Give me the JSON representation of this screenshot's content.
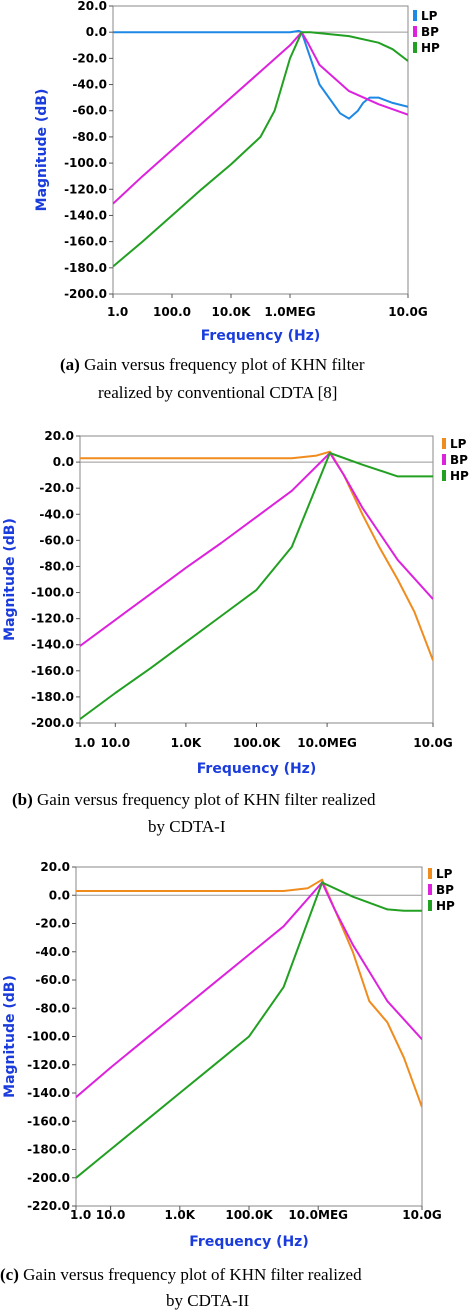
{
  "chart_data": [
    {
      "type": "line",
      "xscale": "log",
      "x_tick_labels": [
        "1.0",
        "100.0",
        "10.0K",
        "1.0MEG",
        "10.0G"
      ],
      "x_tick_values": [
        1,
        100,
        10000,
        1000000,
        10000000000
      ],
      "xlim": [
        1,
        10000000000
      ],
      "ylim": [
        -200,
        20
      ],
      "y_ticks": [
        20,
        0,
        -20,
        -40,
        -60,
        -80,
        -100,
        -120,
        -140,
        -160,
        -180,
        -200
      ],
      "y_tick_labels": [
        "20.0",
        "0.0",
        "-20.0",
        "-40.0",
        "-60.0",
        "-80.0",
        "-100.0",
        "-120.0",
        "-140.0",
        "-160.0",
        "-180.0",
        "-200.0"
      ],
      "xlabel": "Frequency (Hz)",
      "ylabel": "Magnitude (dB)",
      "legend_placement": "top-right outside",
      "series": [
        {
          "name": "LP",
          "color": "#1e88e5",
          "x": [
            1,
            100,
            10000,
            1000000,
            2000000,
            2500000,
            3500000,
            10000000,
            50000000,
            100000000,
            200000000,
            300000000,
            500000000,
            1000000000,
            3000000000,
            10000000000
          ],
          "y": [
            0,
            0,
            0,
            0,
            1,
            0,
            -10,
            -40,
            -62,
            -66,
            -60,
            -54,
            -50,
            -50,
            -54,
            -57
          ]
        },
        {
          "name": "BP",
          "color": "#dd22dd",
          "x": [
            1,
            10,
            100,
            1000,
            10000,
            100000,
            1000000,
            2500000,
            4000000,
            10000000,
            100000000,
            1000000000,
            10000000000
          ],
          "y": [
            -131,
            -110,
            -90,
            -70,
            -50,
            -30,
            -10,
            0,
            -8,
            -25,
            -45,
            -55,
            -63
          ]
        },
        {
          "name": "HP",
          "color": "#22a022",
          "x": [
            1,
            10,
            100,
            1000,
            10000,
            100000,
            300000,
            1000000,
            2500000,
            5000000,
            100000000,
            1000000000,
            3000000000,
            10000000000
          ],
          "y": [
            -179,
            -160,
            -140,
            -120,
            -101,
            -80,
            -60,
            -20,
            0,
            0,
            -3,
            -8,
            -13,
            -22
          ]
        }
      ]
    },
    {
      "type": "line",
      "xscale": "log",
      "x_tick_labels": [
        "1.0",
        "10.0",
        "1.0K",
        "100.0K",
        "10.0MEG",
        "10.0G"
      ],
      "x_tick_values": [
        1,
        10,
        1000,
        100000,
        10000000,
        10000000000
      ],
      "xlim": [
        1,
        10000000000
      ],
      "ylim": [
        -200,
        20
      ],
      "y_ticks": [
        20,
        0,
        -20,
        -40,
        -60,
        -80,
        -100,
        -120,
        -140,
        -160,
        -180,
        -200
      ],
      "y_tick_labels": [
        "20.0",
        "0.0",
        "-20.0",
        "-40.0",
        "-60.0",
        "-80.0",
        "-100.0",
        "-120.0",
        "-140.0",
        "-160.0",
        "-180.0",
        "-200.0"
      ],
      "xlabel": "Frequency (Hz)",
      "ylabel": "Magnitude (dB)",
      "legend_placement": "top-right outside",
      "series": [
        {
          "name": "LP",
          "color": "#f08c1e",
          "x": [
            1,
            10,
            100,
            1000,
            10000,
            100000,
            1000000,
            5000000,
            12000000,
            30000000,
            100000000,
            300000000,
            1000000000,
            3000000000,
            10000000000
          ],
          "y": [
            3,
            3,
            3,
            3,
            3,
            3,
            3,
            5,
            8,
            -10,
            -40,
            -65,
            -90,
            -115,
            -152
          ]
        },
        {
          "name": "BP",
          "color": "#dd22dd",
          "x": [
            1,
            10,
            100,
            1000,
            10000,
            100000,
            1000000,
            12000000,
            30000000,
            100000000,
            1000000000,
            10000000000
          ],
          "y": [
            -141,
            -121,
            -101,
            -81,
            -62,
            -42,
            -22,
            7,
            -10,
            -35,
            -75,
            -105
          ]
        },
        {
          "name": "HP",
          "color": "#22a022",
          "x": [
            1,
            10,
            100,
            1000,
            10000,
            100000,
            1000000,
            12000000,
            100000000,
            1000000000,
            3000000000,
            10000000000
          ],
          "y": [
            -197,
            -177,
            -158,
            -138,
            -118,
            -98,
            -65,
            7,
            -2,
            -11,
            -11,
            -11
          ]
        }
      ]
    },
    {
      "type": "line",
      "xscale": "log",
      "x_tick_labels": [
        "1.0",
        "10.0",
        "1.0K",
        "100.0K",
        "10.0MEG",
        "10.0G"
      ],
      "x_tick_values": [
        1,
        10,
        1000,
        100000,
        10000000,
        10000000000
      ],
      "xlim": [
        1,
        10000000000
      ],
      "ylim": [
        -220,
        20
      ],
      "y_ticks": [
        20,
        0,
        -20,
        -40,
        -60,
        -80,
        -100,
        -120,
        -140,
        -160,
        -180,
        -200,
        -220
      ],
      "y_tick_labels": [
        "20.0",
        "0.0",
        "-20.0",
        "-40.0",
        "-60.0",
        "-80.0",
        "-100.0",
        "-120.0",
        "-140.0",
        "-160.0",
        "-180.0",
        "-200.0",
        "-220.0"
      ],
      "xlabel": "Frequency (Hz)",
      "ylabel": "Magnitude (dB)",
      "legend_placement": "top-right outside",
      "series": [
        {
          "name": "LP",
          "color": "#f08c1e",
          "x": [
            1,
            10,
            100,
            1000,
            10000,
            100000,
            1000000,
            5000000,
            13000000,
            30000000,
            100000000,
            300000000,
            1000000000,
            3000000000,
            10000000000
          ],
          "y": [
            3,
            3,
            3,
            3,
            3,
            3,
            3,
            5,
            11,
            -10,
            -40,
            -75,
            -90,
            -115,
            -150
          ]
        },
        {
          "name": "BP",
          "color": "#dd22dd",
          "x": [
            1,
            10,
            100,
            1000,
            10000,
            100000,
            1000000,
            13000000,
            30000000,
            100000000,
            1000000000,
            10000000000
          ],
          "y": [
            -143,
            -122,
            -102,
            -82,
            -62,
            -42,
            -22,
            9,
            -10,
            -35,
            -75,
            -102
          ]
        },
        {
          "name": "HP",
          "color": "#22a022",
          "x": [
            1,
            10,
            100,
            1000,
            10000,
            100000,
            1000000,
            13000000,
            100000000,
            1000000000,
            3000000000,
            10000000000
          ],
          "y": [
            -200,
            -180,
            -160,
            -140,
            -120,
            -100,
            -65,
            9,
            -1,
            -10,
            -11,
            -11
          ]
        }
      ]
    }
  ],
  "captions": [
    {
      "label": "(a)",
      "text": "Gain versus frequency plot of KHN filter",
      "line2": "realized by conventional CDTA [8]"
    },
    {
      "label": "(b)",
      "text": "Gain versus frequency plot of KHN filter realized",
      "line2": "by CDTA-I"
    },
    {
      "label": "(c)",
      "text": "Gain versus frequency plot of KHN filter realized",
      "line2": "by CDTA-II"
    }
  ]
}
